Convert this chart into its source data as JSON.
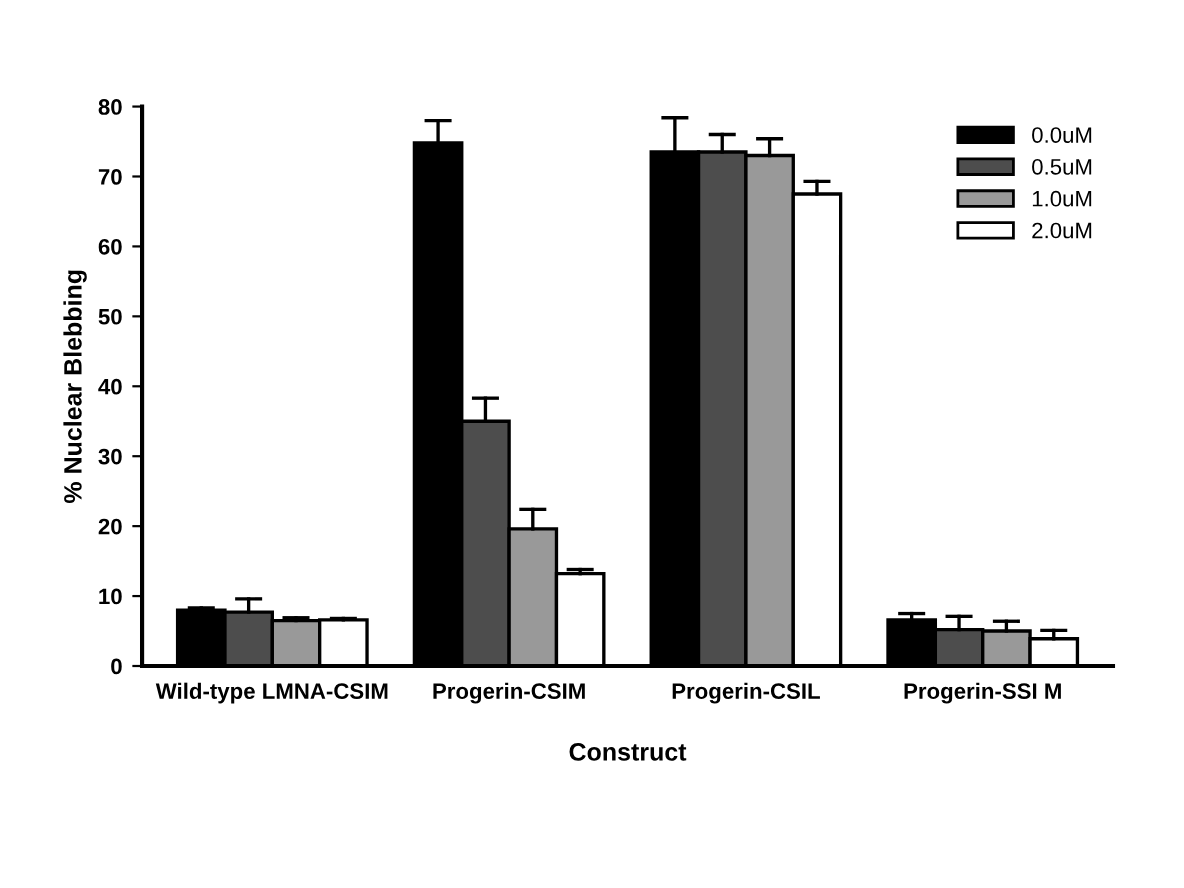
{
  "chart_data": {
    "type": "bar",
    "xlabel": "Construct",
    "ylabel": "% Nuclear Blebbing",
    "categories": [
      "Wild-type LMNA-CSIM",
      "Progerin-CSIM",
      "Progerin-CSIL",
      "Progerin-SSI M"
    ],
    "series": [
      {
        "name": "0.0uM",
        "color": "#000000",
        "values": [
          8.0,
          74.8,
          73.5,
          6.6
        ],
        "errors": [
          [
            8.0,
            8.3
          ],
          [
            74.8,
            78.0
          ],
          [
            73.5,
            78.4
          ],
          [
            6.6,
            7.5
          ]
        ]
      },
      {
        "name": "0.5uM",
        "color": "#4d4d4d",
        "values": [
          7.7,
          35.0,
          73.5,
          5.2
        ],
        "errors": [
          [
            7.7,
            9.6
          ],
          [
            35.0,
            38.3
          ],
          [
            73.5,
            76.0
          ],
          [
            5.2,
            7.1
          ]
        ]
      },
      {
        "name": "1.0uM",
        "color": "#999999",
        "values": [
          6.5,
          19.6,
          73.0,
          5.0
        ],
        "errors": [
          [
            6.5,
            6.9
          ],
          [
            19.6,
            22.4
          ],
          [
            73.0,
            75.4
          ],
          [
            5.0,
            6.4
          ]
        ]
      },
      {
        "name": "2.0uM",
        "color": "#ffffff",
        "values": [
          6.6,
          13.2,
          67.5,
          3.9
        ],
        "errors": [
          [
            6.6,
            6.8
          ],
          [
            13.2,
            13.8
          ],
          [
            67.5,
            69.3
          ],
          [
            3.9,
            5.1
          ]
        ]
      }
    ],
    "ylim": [
      0,
      80
    ],
    "yticks": [
      0,
      10,
      20,
      30,
      40,
      50,
      60,
      70,
      80
    ],
    "grid": false,
    "legend": "top right"
  }
}
